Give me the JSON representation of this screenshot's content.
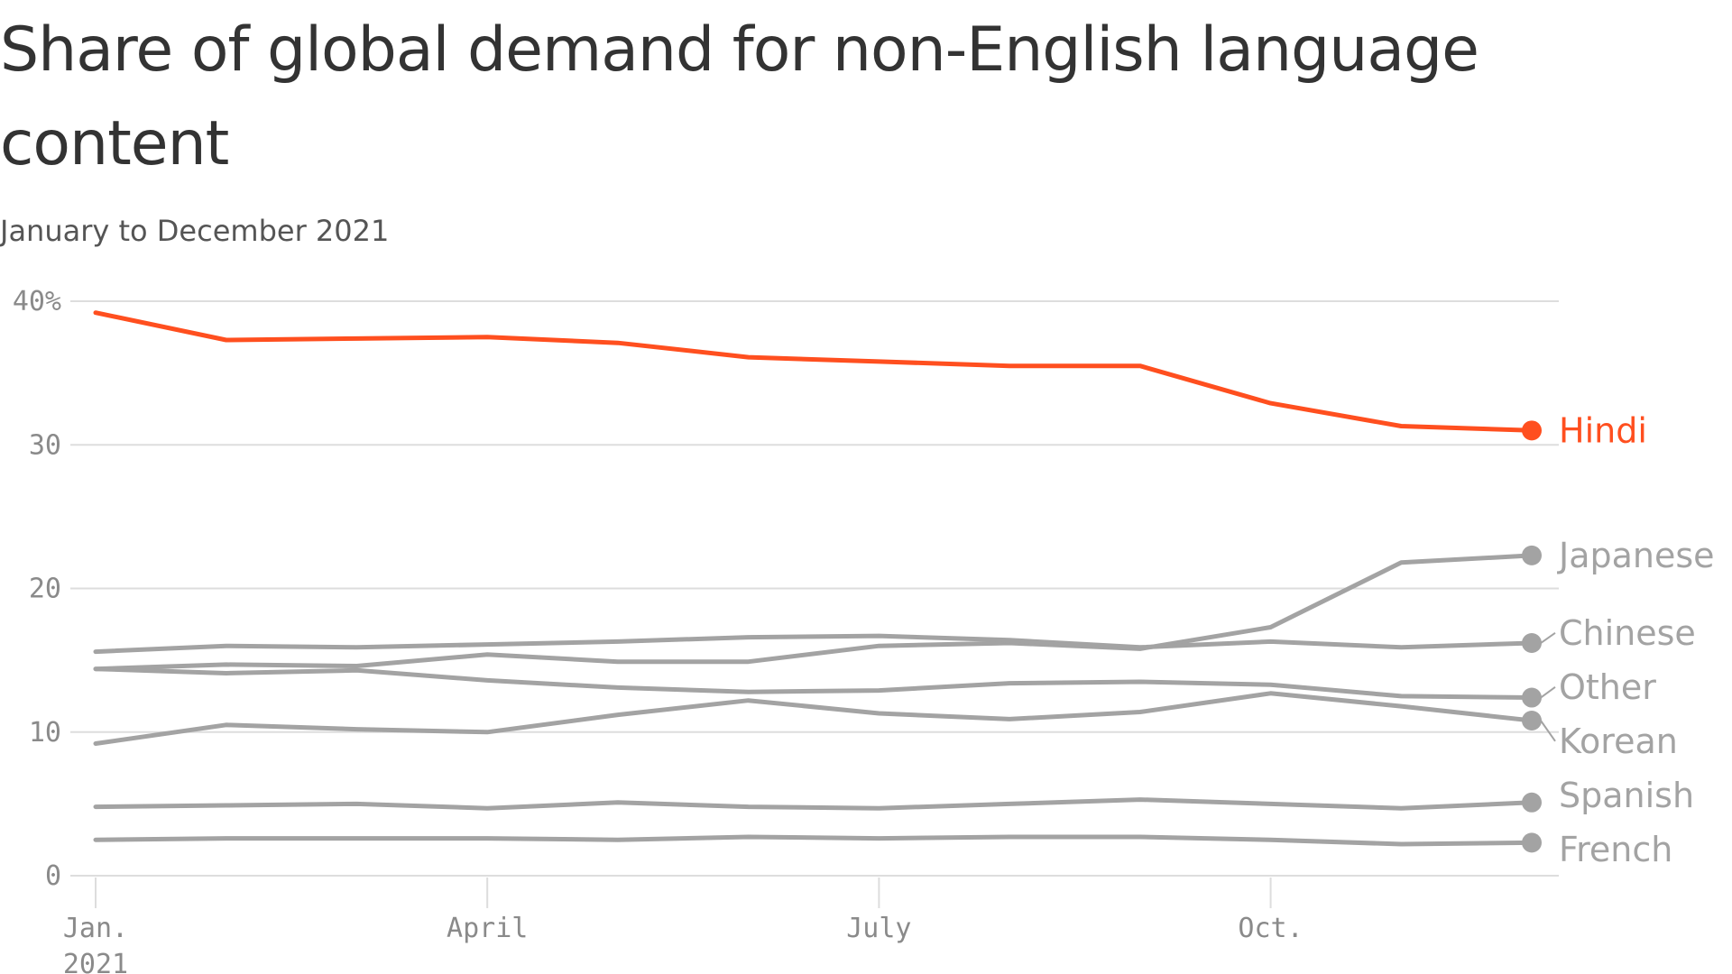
{
  "title": "Share of global demand for non-English language content",
  "subtitle": "January to December 2021",
  "colors": {
    "highlight": "#ff4f1f",
    "muted": "#a3a3a3",
    "grid": "#dddddd",
    "axis_text": "#8a8a8a"
  },
  "chart_data": {
    "type": "line",
    "title": "Share of global demand for non-English language content",
    "subtitle": "January to December 2021",
    "x": [
      "2021-01",
      "2021-02",
      "2021-03",
      "2021-04",
      "2021-05",
      "2021-06",
      "2021-07",
      "2021-08",
      "2021-09",
      "2021-10",
      "2021-11",
      "2021-12"
    ],
    "x_ticks": [
      {
        "value": "2021-01",
        "label": "Jan.",
        "label2": "2021"
      },
      {
        "value": "2021-04",
        "label": "April",
        "label2": ""
      },
      {
        "value": "2021-07",
        "label": "July",
        "label2": ""
      },
      {
        "value": "2021-10",
        "label": "Oct.",
        "label2": ""
      }
    ],
    "y_ticks": [
      {
        "value": 0,
        "label": "0"
      },
      {
        "value": 10,
        "label": "10"
      },
      {
        "value": 20,
        "label": "20"
      },
      {
        "value": 30,
        "label": "30"
      },
      {
        "value": 40,
        "label": "40%"
      }
    ],
    "ylim": [
      0,
      40
    ],
    "grid": true,
    "legend": "direct labels at line ends",
    "series": [
      {
        "name": "Hindi",
        "highlight": true,
        "values": [
          39.2,
          37.3,
          37.4,
          37.5,
          37.1,
          36.1,
          35.8,
          35.5,
          35.5,
          32.9,
          31.3,
          31.0
        ]
      },
      {
        "name": "Japanese",
        "highlight": false,
        "values": [
          14.4,
          14.7,
          14.6,
          15.4,
          14.9,
          14.9,
          16.0,
          16.2,
          15.8,
          17.3,
          21.8,
          22.3
        ]
      },
      {
        "name": "Chinese",
        "highlight": false,
        "values": [
          15.6,
          16.0,
          15.9,
          16.1,
          16.3,
          16.6,
          16.7,
          16.4,
          15.9,
          16.3,
          15.9,
          16.2
        ]
      },
      {
        "name": "Other",
        "highlight": false,
        "values": [
          14.4,
          14.1,
          14.3,
          13.6,
          13.1,
          12.8,
          12.9,
          13.4,
          13.5,
          13.3,
          12.5,
          12.4
        ]
      },
      {
        "name": "Korean",
        "highlight": false,
        "values": [
          9.2,
          10.5,
          10.2,
          10.0,
          11.2,
          12.2,
          11.3,
          10.9,
          11.4,
          12.7,
          11.8,
          10.8
        ]
      },
      {
        "name": "Spanish",
        "highlight": false,
        "values": [
          4.8,
          4.9,
          5.0,
          4.7,
          5.1,
          4.8,
          4.7,
          5.0,
          5.3,
          5.0,
          4.7,
          5.1
        ]
      },
      {
        "name": "French",
        "highlight": false,
        "values": [
          2.5,
          2.6,
          2.6,
          2.6,
          2.5,
          2.7,
          2.6,
          2.7,
          2.7,
          2.5,
          2.2,
          2.3
        ]
      }
    ]
  }
}
